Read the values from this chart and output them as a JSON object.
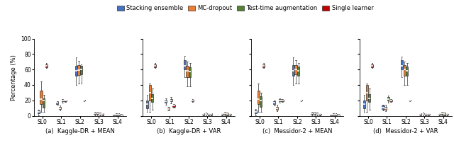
{
  "subplot_titles": [
    "(a)  Kaggle-DR + MEAN",
    "(b)  Kaggle-DR + VAR",
    "(c)  Messidor-2 + MEAN",
    "(d)  Messidor-2 + VAR"
  ],
  "xlabel_categories": [
    "SL0",
    "SL1",
    "SL2",
    "SL3",
    "SL4"
  ],
  "ylabel": "Percentage (%)",
  "ylim": [
    0,
    100
  ],
  "yticks": [
    0,
    20,
    40,
    60,
    80,
    100
  ],
  "legend_labels": [
    "Stacking ensemble",
    "MC-dropout",
    "Test-time augmentation",
    "Single learner"
  ],
  "colors": [
    "#4472C4",
    "#ED7D31",
    "#548235",
    "#C00000"
  ],
  "subplots": {
    "a": {
      "SL0": {
        "blue": {
          "whislo": 1,
          "q1": 3,
          "med": 5,
          "q3": 7,
          "whishi": 8
        },
        "orange": {
          "whislo": 5,
          "q1": 15,
          "med": 22,
          "q3": 33,
          "whishi": 45
        },
        "green": {
          "whislo": 5,
          "q1": 11,
          "med": 20,
          "q3": 23,
          "whishi": 27
        },
        "red": {
          "whislo": 62,
          "q1": 63,
          "med": 65,
          "q3": 67,
          "whishi": 68
        }
      },
      "SL1": {
        "blue": {
          "whislo": 14,
          "q1": 15,
          "med": 17,
          "q3": 18,
          "whishi": 18.5
        },
        "orange": {
          "whislo": 7,
          "q1": 9,
          "med": 10,
          "q3": 12,
          "whishi": 13
        },
        "green": {
          "whislo": 17,
          "q1": 19,
          "med": 20,
          "q3": 21,
          "whishi": 22
        },
        "red": {
          "whislo": 18,
          "q1": 19,
          "med": 19.5,
          "q3": 20,
          "whishi": 20.5
        }
      },
      "SL2": {
        "blue": {
          "whislo": 40,
          "q1": 52,
          "med": 58,
          "q3": 65,
          "whishi": 76
        },
        "orange": {
          "whislo": 42,
          "q1": 53,
          "med": 59,
          "q3": 66,
          "whishi": 71
        },
        "green": {
          "whislo": 42,
          "q1": 54,
          "med": 60,
          "q3": 65,
          "whishi": 67
        },
        "red": {
          "whislo": 19,
          "q1": 19.5,
          "med": 20,
          "q3": 20.5,
          "whishi": 21
        }
      },
      "SL3": {
        "blue": {
          "whislo": 1,
          "q1": 2,
          "med": 3,
          "q3": 4,
          "whishi": 5
        },
        "orange": {
          "whislo": 1,
          "q1": 2,
          "med": 3,
          "q3": 4,
          "whishi": 5
        },
        "green": {
          "whislo": 1,
          "q1": 2,
          "med": 2.5,
          "q3": 3,
          "whishi": 4
        },
        "red": {
          "whislo": 1,
          "q1": 1.5,
          "med": 2,
          "q3": 2.5,
          "whishi": 3
        }
      },
      "SL4": {
        "blue": {
          "whislo": 0.5,
          "q1": 0.8,
          "med": 1.2,
          "q3": 1.5,
          "whishi": 2
        },
        "orange": {
          "whislo": 0.5,
          "q1": 1,
          "med": 1.5,
          "q3": 2,
          "whishi": 3
        },
        "green": {
          "whislo": 0.5,
          "q1": 1,
          "med": 1.5,
          "q3": 2,
          "whishi": 3
        },
        "red": {
          "whislo": 0.5,
          "q1": 0.8,
          "med": 1,
          "q3": 1.5,
          "whishi": 2
        }
      }
    },
    "b": {
      "SL0": {
        "blue": {
          "whislo": 5,
          "q1": 10,
          "med": 15,
          "q3": 20,
          "whishi": 27
        },
        "orange": {
          "whislo": 5,
          "q1": 20,
          "med": 30,
          "q3": 40,
          "whishi": 42
        },
        "green": {
          "whislo": 8,
          "q1": 18,
          "med": 23,
          "q3": 28,
          "whishi": 35
        },
        "red": {
          "whislo": 62,
          "q1": 63,
          "med": 65,
          "q3": 67,
          "whishi": 68
        }
      },
      "SL1": {
        "blue": {
          "whislo": 14,
          "q1": 17,
          "med": 19,
          "q3": 21,
          "whishi": 23
        },
        "orange": {
          "whislo": 7,
          "q1": 8,
          "med": 9,
          "q3": 11,
          "whishi": 12
        },
        "green": {
          "whislo": 16,
          "q1": 19,
          "med": 20,
          "q3": 22,
          "whishi": 24
        },
        "red": {
          "whislo": 11,
          "q1": 12,
          "med": 13,
          "q3": 14,
          "whishi": 15
        }
      },
      "SL2": {
        "blue": {
          "whislo": 50,
          "q1": 60,
          "med": 65,
          "q3": 72,
          "whishi": 78
        },
        "orange": {
          "whislo": 38,
          "q1": 50,
          "med": 58,
          "q3": 65,
          "whishi": 70
        },
        "green": {
          "whislo": 38,
          "q1": 50,
          "med": 57,
          "q3": 63,
          "whishi": 68
        },
        "red": {
          "whislo": 18,
          "q1": 19,
          "med": 20,
          "q3": 21,
          "whishi": 22
        }
      },
      "SL3": {
        "blue": {
          "whislo": 1,
          "q1": 1.5,
          "med": 2,
          "q3": 2.5,
          "whishi": 3
        },
        "orange": {
          "whislo": 1,
          "q1": 2,
          "med": 2.5,
          "q3": 3,
          "whishi": 4
        },
        "green": {
          "whislo": 1,
          "q1": 1.5,
          "med": 2,
          "q3": 2.5,
          "whishi": 3
        },
        "red": {
          "whislo": 1,
          "q1": 1.5,
          "med": 2,
          "q3": 2.5,
          "whishi": 3
        }
      },
      "SL4": {
        "blue": {
          "whislo": 1,
          "q1": 1.5,
          "med": 2,
          "q3": 2.5,
          "whishi": 3
        },
        "orange": {
          "whislo": 1,
          "q1": 2,
          "med": 3,
          "q3": 4,
          "whishi": 5
        },
        "green": {
          "whislo": 0.5,
          "q1": 1,
          "med": 2,
          "q3": 3,
          "whishi": 4
        },
        "red": {
          "whislo": 1,
          "q1": 1.5,
          "med": 2,
          "q3": 2.5,
          "whishi": 3
        }
      }
    },
    "c": {
      "SL0": {
        "blue": {
          "whislo": 1,
          "q1": 3,
          "med": 5,
          "q3": 7,
          "whishi": 9
        },
        "orange": {
          "whislo": 5,
          "q1": 15,
          "med": 22,
          "q3": 33,
          "whishi": 42
        },
        "green": {
          "whislo": 5,
          "q1": 12,
          "med": 20,
          "q3": 25,
          "whishi": 30
        },
        "red": {
          "whislo": 62,
          "q1": 63,
          "med": 65,
          "q3": 67,
          "whishi": 68
        }
      },
      "SL1": {
        "blue": {
          "whislo": 13,
          "q1": 15,
          "med": 17,
          "q3": 19,
          "whishi": 20
        },
        "orange": {
          "whislo": 6,
          "q1": 8,
          "med": 10,
          "q3": 12,
          "whishi": 14
        },
        "green": {
          "whislo": 17,
          "q1": 19,
          "med": 20,
          "q3": 22,
          "whishi": 23
        },
        "red": {
          "whislo": 18,
          "q1": 19,
          "med": 20,
          "q3": 21,
          "whishi": 22
        }
      },
      "SL2": {
        "blue": {
          "whislo": 40,
          "q1": 52,
          "med": 58,
          "q3": 66,
          "whishi": 76
        },
        "orange": {
          "whislo": 42,
          "q1": 54,
          "med": 60,
          "q3": 66,
          "whishi": 72
        },
        "green": {
          "whislo": 42,
          "q1": 52,
          "med": 58,
          "q3": 64,
          "whishi": 68
        },
        "red": {
          "whislo": 19,
          "q1": 19.5,
          "med": 20,
          "q3": 20.5,
          "whishi": 21
        }
      },
      "SL3": {
        "blue": {
          "whislo": 1,
          "q1": 2,
          "med": 3,
          "q3": 4,
          "whishi": 5
        },
        "orange": {
          "whislo": 1,
          "q1": 2,
          "med": 3,
          "q3": 4,
          "whishi": 5
        },
        "green": {
          "whislo": 1,
          "q1": 2,
          "med": 2.5,
          "q3": 3,
          "whishi": 4
        },
        "red": {
          "whislo": 1,
          "q1": 1.5,
          "med": 2,
          "q3": 2.5,
          "whishi": 3
        }
      },
      "SL4": {
        "blue": {
          "whislo": 0.5,
          "q1": 0.8,
          "med": 1.2,
          "q3": 1.5,
          "whishi": 2
        },
        "orange": {
          "whislo": 0.5,
          "q1": 1,
          "med": 1.5,
          "q3": 2,
          "whishi": 3
        },
        "green": {
          "whislo": 0.5,
          "q1": 1,
          "med": 1.5,
          "q3": 2,
          "whishi": 3
        },
        "red": {
          "whislo": 0.5,
          "q1": 0.8,
          "med": 1,
          "q3": 1.5,
          "whishi": 2
        }
      }
    },
    "d": {
      "SL0": {
        "blue": {
          "whislo": 5,
          "q1": 10,
          "med": 15,
          "q3": 20,
          "whishi": 27
        },
        "orange": {
          "whislo": 5,
          "q1": 20,
          "med": 30,
          "q3": 40,
          "whishi": 42
        },
        "green": {
          "whislo": 8,
          "q1": 18,
          "med": 23,
          "q3": 28,
          "whishi": 35
        },
        "red": {
          "whislo": 62,
          "q1": 63,
          "med": 65,
          "q3": 67,
          "whishi": 68
        }
      },
      "SL1": {
        "blue": {
          "whislo": 7,
          "q1": 9,
          "med": 11,
          "q3": 13,
          "whishi": 14
        },
        "orange": {
          "whislo": 6,
          "q1": 8,
          "med": 10,
          "q3": 12,
          "whishi": 14
        },
        "green": {
          "whislo": 17,
          "q1": 20,
          "med": 22,
          "q3": 24,
          "whishi": 26
        },
        "red": {
          "whislo": 18,
          "q1": 19,
          "med": 20,
          "q3": 21,
          "whishi": 22
        }
      },
      "SL2": {
        "blue": {
          "whislo": 50,
          "q1": 60,
          "med": 65,
          "q3": 72,
          "whishi": 77
        },
        "orange": {
          "whislo": 40,
          "q1": 52,
          "med": 60,
          "q3": 66,
          "whishi": 70
        },
        "green": {
          "whislo": 40,
          "q1": 52,
          "med": 58,
          "q3": 64,
          "whishi": 68
        },
        "red": {
          "whislo": 19,
          "q1": 19.5,
          "med": 20,
          "q3": 20.5,
          "whishi": 21
        }
      },
      "SL3": {
        "blue": {
          "whislo": 1,
          "q1": 1.5,
          "med": 2,
          "q3": 2.5,
          "whishi": 3
        },
        "orange": {
          "whislo": 1,
          "q1": 2,
          "med": 2.5,
          "q3": 3,
          "whishi": 4
        },
        "green": {
          "whislo": 1,
          "q1": 1.5,
          "med": 2,
          "q3": 2.5,
          "whishi": 3
        },
        "red": {
          "whislo": 1,
          "q1": 1.5,
          "med": 2,
          "q3": 2.5,
          "whishi": 3
        }
      },
      "SL4": {
        "blue": {
          "whislo": 1,
          "q1": 1.5,
          "med": 2,
          "q3": 2.5,
          "whishi": 3
        },
        "orange": {
          "whislo": 1,
          "q1": 2,
          "med": 3,
          "q3": 4,
          "whishi": 5
        },
        "green": {
          "whislo": 0.5,
          "q1": 1,
          "med": 2,
          "q3": 3,
          "whishi": 4
        },
        "red": {
          "whislo": 1,
          "q1": 1.5,
          "med": 2,
          "q3": 2.5,
          "whishi": 3
        }
      }
    }
  }
}
